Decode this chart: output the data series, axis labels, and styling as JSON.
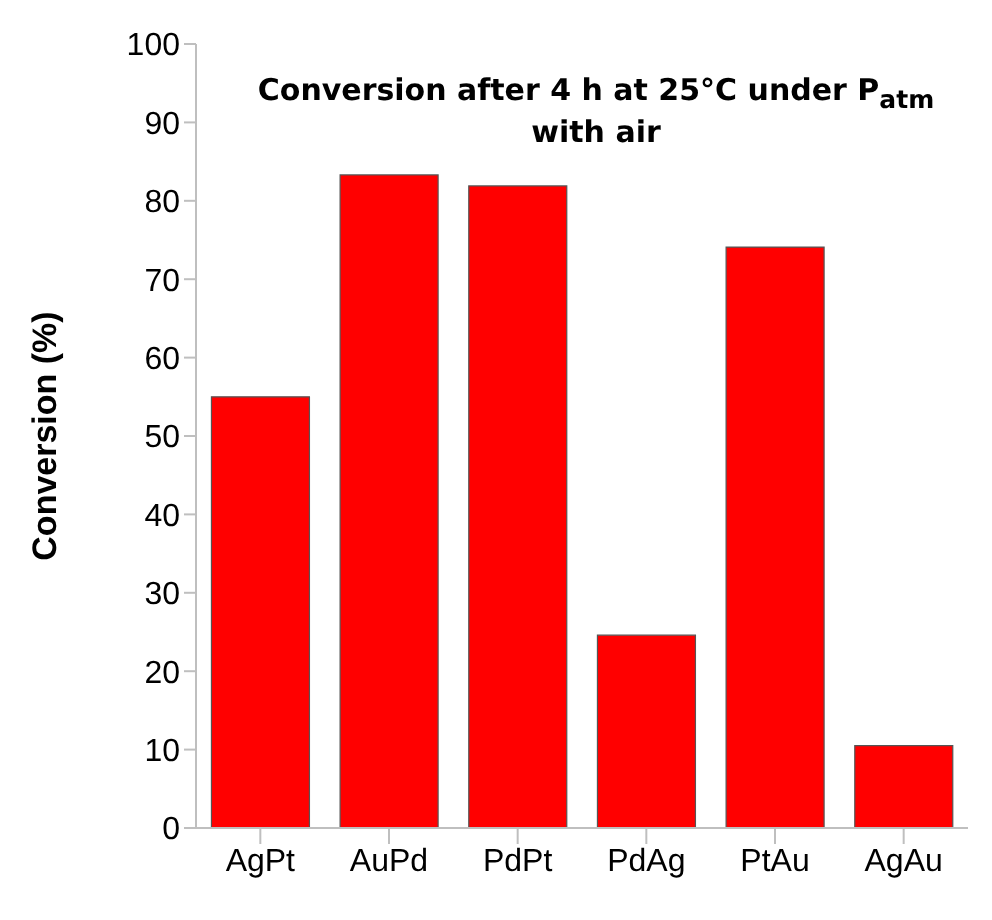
{
  "chart_data": {
    "type": "bar",
    "title": "Conversion after 4 h at 25°C under P$_{atm}$ with air",
    "ylabel": "Conversion (%)",
    "categories": [
      "AgPt",
      "AuPd",
      "PdPt",
      "PdAg",
      "PtAu",
      "AgAu"
    ],
    "values": [
      55,
      83.3,
      81.9,
      24.6,
      74.1,
      10.5
    ],
    "color": "#ff0000",
    "ylim": [
      0,
      100
    ],
    "yticks": [
      0,
      10,
      20,
      30,
      40,
      50,
      60,
      70,
      80,
      90,
      100
    ],
    "grid": false
  }
}
